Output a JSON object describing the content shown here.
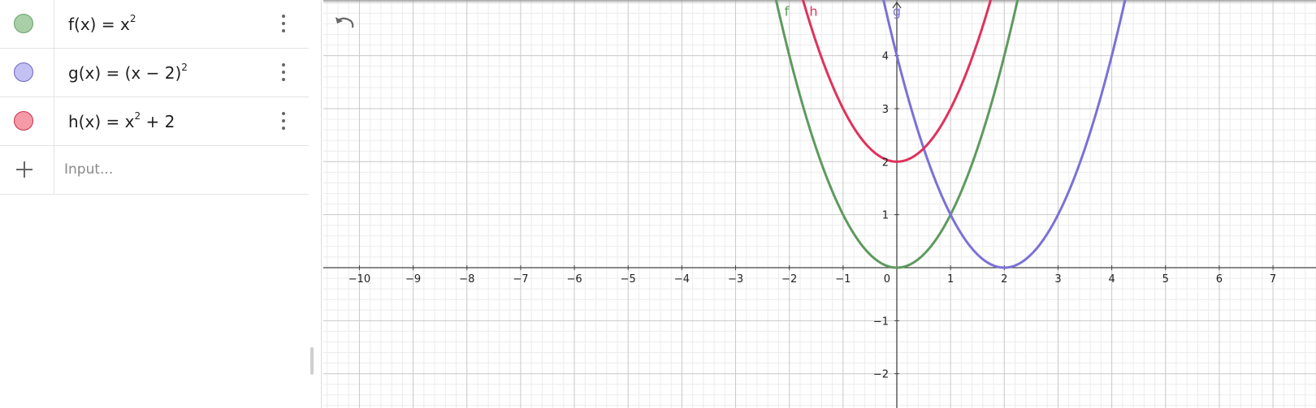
{
  "algebra": {
    "rows": [
      {
        "name": "f",
        "def": "f(x)",
        "eq": "=",
        "rhs": "x",
        "sup": "2",
        "tail": "",
        "color": "#6a9e6a",
        "fill": "#a9cfa7"
      },
      {
        "name": "g",
        "def": "g(x)",
        "eq": "=",
        "rhs": "(x − 2)",
        "sup": "2",
        "tail": "",
        "color": "#6b63c9",
        "fill": "#c3c0f4"
      },
      {
        "name": "h",
        "def": "h(x)",
        "eq": "=",
        "rhs": "x",
        "sup": "2",
        "tail": " + 2",
        "color": "#c4304c",
        "fill": "#f59aa6"
      }
    ],
    "add_icon": "plus-icon",
    "input_placeholder": "Input..."
  },
  "toolbar": {
    "undo_icon": "undo-icon"
  },
  "chart_data": {
    "type": "line",
    "xlim": [
      -10.7,
      7.8
    ],
    "ylim": [
      -2.6,
      5.05
    ],
    "x_ticks": [
      -10,
      -9,
      -8,
      -7,
      -6,
      -5,
      -4,
      -3,
      -2,
      -1,
      0,
      1,
      2,
      3,
      4,
      5,
      6,
      7
    ],
    "x_tick_labels": [
      "−10",
      "−9",
      "−8",
      "−7",
      "−6",
      "−5",
      "−4",
      "−3",
      "−2",
      "−1",
      "0",
      "1",
      "2",
      "3",
      "4",
      "5",
      "6",
      "7"
    ],
    "y_ticks": [
      -2,
      -1,
      1,
      2,
      3,
      4
    ],
    "y_tick_labels": [
      "−2",
      "−1",
      "1",
      "2",
      "3",
      "4"
    ],
    "grid": true,
    "series": [
      {
        "name": "f",
        "expr": "x^2",
        "color": "#5e9a5e",
        "label_at": [
          -2.05,
          4.75
        ]
      },
      {
        "name": "g",
        "expr": "(x-2)^2",
        "color": "#7b71d6",
        "label_at": [
          0.0,
          4.75
        ]
      },
      {
        "name": "h",
        "expr": "x^2+2",
        "color": "#e0325b",
        "label_at": [
          -1.55,
          4.75
        ]
      }
    ]
  }
}
